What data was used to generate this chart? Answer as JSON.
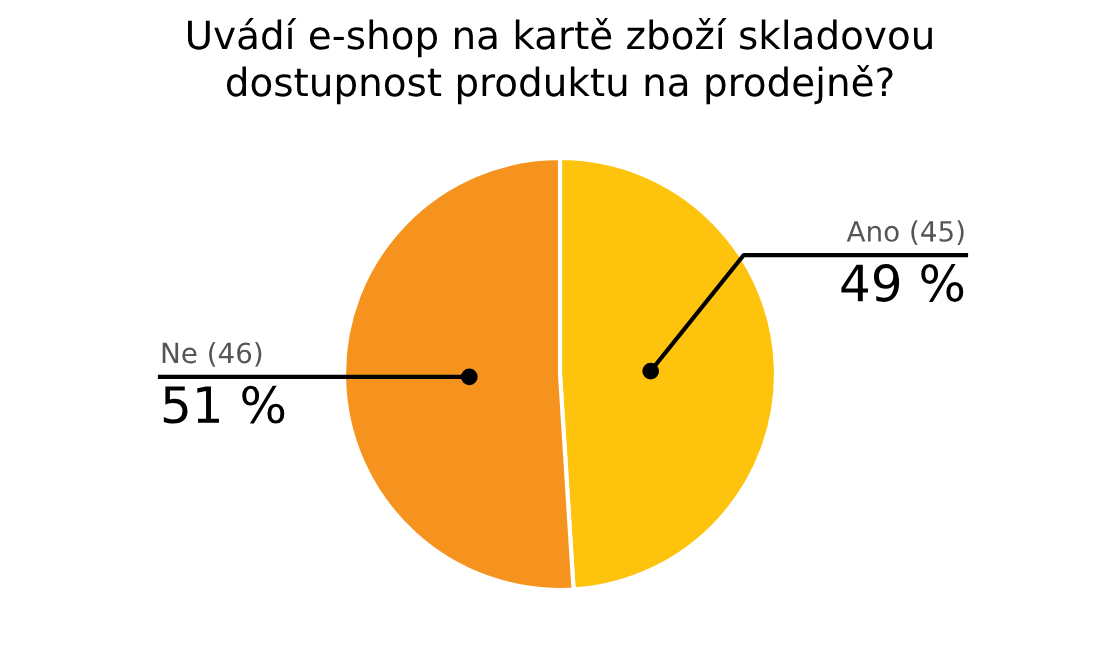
{
  "chart_data": {
    "type": "pie",
    "title": "Uvádí e-shop na kartě zboží skladovou\ndostupnost produktu na prodejně?",
    "categories": [
      "Ano (45)",
      "Ne (46)"
    ],
    "values": [
      49,
      51
    ],
    "colors": [
      "#fec30d",
      "#f6921e"
    ],
    "value_labels": [
      "49 %",
      "51 %"
    ]
  }
}
